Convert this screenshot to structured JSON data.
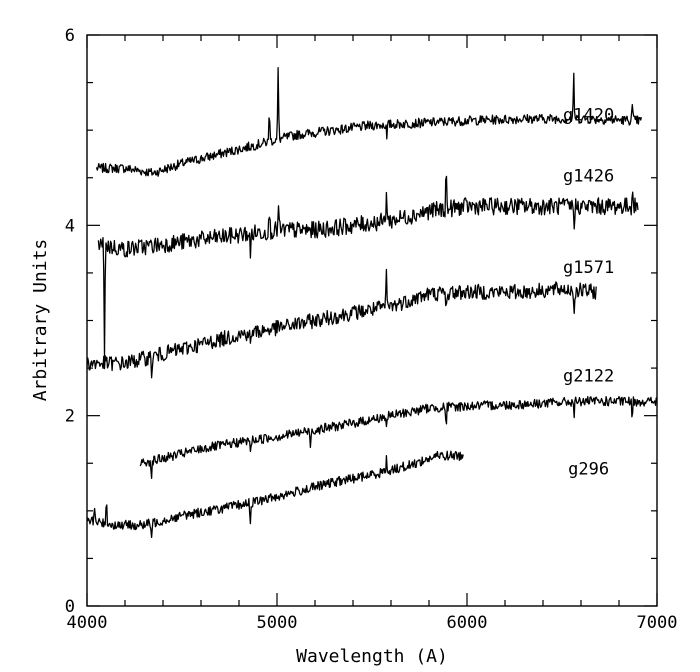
{
  "chart_data": {
    "type": "line",
    "title": "",
    "xlabel": "Wavelength (A)",
    "ylabel": "Arbitrary Units",
    "xlim": [
      4000,
      7000
    ],
    "ylim": [
      0,
      6
    ],
    "x_ticks": [
      4000,
      5000,
      6000,
      7000
    ],
    "y_ticks": [
      0,
      2,
      4,
      6
    ],
    "x_tick_labels": [
      "4000",
      "5000",
      "6000",
      "7000"
    ],
    "y_tick_labels": [
      "0",
      "2",
      "4",
      "6"
    ],
    "x_minor_step": 200,
    "y_minor_step": 0.5,
    "grid": false,
    "legend": "none",
    "line_color": "#000000",
    "series": [
      {
        "name": "g1420",
        "label_position": [
          6640,
          5.1
        ],
        "range": [
          4050,
          6920
        ],
        "noise": 0.05,
        "base": [
          [
            4050,
            4.6
          ],
          [
            4200,
            4.6
          ],
          [
            4350,
            4.55
          ],
          [
            4500,
            4.65
          ],
          [
            4700,
            4.75
          ],
          [
            4900,
            4.85
          ],
          [
            5100,
            4.95
          ],
          [
            5300,
            5.0
          ],
          [
            5500,
            5.05
          ],
          [
            5700,
            5.07
          ],
          [
            6000,
            5.1
          ],
          [
            6300,
            5.12
          ],
          [
            6600,
            5.12
          ],
          [
            6920,
            5.1
          ]
        ],
        "features": [
          [
            4960,
            0.25
          ],
          [
            5007,
            0.75
          ],
          [
            5577,
            -0.15
          ],
          [
            6563,
            0.45
          ],
          [
            6870,
            0.15
          ]
        ]
      },
      {
        "name": "g1426",
        "label_position": [
          6640,
          4.46
        ],
        "range": [
          4060,
          6900
        ],
        "noise": 0.09,
        "base": [
          [
            4060,
            3.8
          ],
          [
            4200,
            3.75
          ],
          [
            4400,
            3.8
          ],
          [
            4600,
            3.85
          ],
          [
            4800,
            3.9
          ],
          [
            5000,
            3.95
          ],
          [
            5200,
            3.95
          ],
          [
            5400,
            4.0
          ],
          [
            5600,
            4.05
          ],
          [
            5800,
            4.15
          ],
          [
            6000,
            4.2
          ],
          [
            6300,
            4.2
          ],
          [
            6600,
            4.2
          ],
          [
            6900,
            4.2
          ]
        ],
        "features": [
          [
            4092,
            -1.1
          ],
          [
            4861,
            -0.25
          ],
          [
            4960,
            0.2
          ],
          [
            5007,
            0.25
          ],
          [
            5577,
            0.35
          ],
          [
            5890,
            0.3
          ],
          [
            6563,
            -0.2
          ],
          [
            6870,
            0.15
          ]
        ]
      },
      {
        "name": "g1571",
        "label_position": [
          6640,
          3.5
        ],
        "range": [
          4000,
          6680
        ],
        "noise": 0.08,
        "base": [
          [
            4000,
            2.55
          ],
          [
            4200,
            2.55
          ],
          [
            4400,
            2.65
          ],
          [
            4600,
            2.75
          ],
          [
            4800,
            2.85
          ],
          [
            5000,
            2.92
          ],
          [
            5200,
            3.0
          ],
          [
            5400,
            3.08
          ],
          [
            5600,
            3.15
          ],
          [
            5800,
            3.28
          ],
          [
            6000,
            3.3
          ],
          [
            6300,
            3.3
          ],
          [
            6500,
            3.33
          ],
          [
            6680,
            3.3
          ]
        ],
        "features": [
          [
            4340,
            -0.2
          ],
          [
            4861,
            -0.15
          ],
          [
            5577,
            0.35
          ],
          [
            5890,
            -0.15
          ],
          [
            6563,
            -0.25
          ]
        ]
      },
      {
        "name": "g2122",
        "label_position": [
          6640,
          2.36
        ],
        "range": [
          4280,
          7000
        ],
        "noise": 0.05,
        "base": [
          [
            4280,
            1.5
          ],
          [
            4400,
            1.55
          ],
          [
            4600,
            1.65
          ],
          [
            4800,
            1.72
          ],
          [
            5000,
            1.78
          ],
          [
            5200,
            1.85
          ],
          [
            5400,
            1.92
          ],
          [
            5600,
            2.0
          ],
          [
            5800,
            2.08
          ],
          [
            6000,
            2.1
          ],
          [
            6300,
            2.12
          ],
          [
            6600,
            2.15
          ],
          [
            6900,
            2.15
          ],
          [
            7000,
            2.15
          ]
        ],
        "features": [
          [
            4340,
            -0.15
          ],
          [
            4861,
            -0.1
          ],
          [
            5175,
            -0.15
          ],
          [
            5577,
            -0.1
          ],
          [
            5890,
            -0.15
          ],
          [
            6563,
            -0.12
          ],
          [
            6870,
            -0.15
          ]
        ]
      },
      {
        "name": "g296",
        "label_position": [
          6640,
          1.38
        ],
        "range": [
          4000,
          5980
        ],
        "noise": 0.05,
        "base": [
          [
            4000,
            0.9
          ],
          [
            4150,
            0.85
          ],
          [
            4300,
            0.85
          ],
          [
            4500,
            0.95
          ],
          [
            4700,
            1.02
          ],
          [
            4900,
            1.1
          ],
          [
            5100,
            1.2
          ],
          [
            5300,
            1.3
          ],
          [
            5500,
            1.38
          ],
          [
            5700,
            1.48
          ],
          [
            5850,
            1.58
          ],
          [
            5980,
            1.58
          ]
        ],
        "features": [
          [
            4040,
            0.15
          ],
          [
            4102,
            0.2
          ],
          [
            4340,
            -0.15
          ],
          [
            4861,
            -0.2
          ],
          [
            5577,
            0.12
          ]
        ]
      }
    ]
  }
}
